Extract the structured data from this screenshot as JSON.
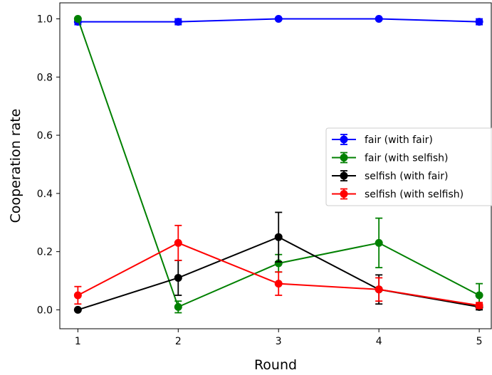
{
  "chart_data": {
    "type": "line",
    "title": "",
    "xlabel": "Round",
    "ylabel": "Cooperation rate",
    "x": [
      1,
      2,
      3,
      4,
      5
    ],
    "xticks": [
      "1",
      "2",
      "3",
      "4",
      "5"
    ],
    "yticks": [
      "0.0",
      "0.2",
      "0.4",
      "0.6",
      "0.8",
      "1.0"
    ],
    "xlim": [
      0.82,
      5.12
    ],
    "ylim": [
      -0.065,
      1.055
    ],
    "grid": false,
    "legend_position": "center-right",
    "series": [
      {
        "name": "fair (with fair)",
        "color": "#0000ff",
        "values": [
          0.99,
          0.99,
          1.0,
          1.0,
          0.99
        ],
        "errors": [
          0.01,
          0.01,
          0.0,
          0.0,
          0.01
        ]
      },
      {
        "name": "fair (with selfish)",
        "color": "#008000",
        "values": [
          1.0,
          0.01,
          0.16,
          0.23,
          0.05
        ],
        "errors": [
          0.0,
          0.02,
          0.03,
          0.085,
          0.04
        ]
      },
      {
        "name": "selfish (with fair)",
        "color": "#000000",
        "values": [
          0.0,
          0.11,
          0.25,
          0.07,
          0.01
        ],
        "errors": [
          0.0,
          0.06,
          0.085,
          0.05,
          0.01
        ]
      },
      {
        "name": "selfish (with selfish)",
        "color": "#ff0000",
        "values": [
          0.05,
          0.23,
          0.09,
          0.07,
          0.015
        ],
        "errors": [
          0.03,
          0.06,
          0.04,
          0.04,
          0.01
        ]
      }
    ]
  }
}
